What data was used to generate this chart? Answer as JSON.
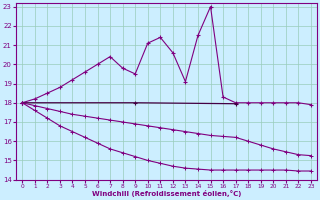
{
  "bg_color": "#cceeff",
  "line_color": "#800080",
  "dark_line_color": "#440044",
  "grid_color": "#99ccbb",
  "xlim": [
    -0.5,
    23.5
  ],
  "ylim": [
    14,
    23.2
  ],
  "yticks": [
    14,
    15,
    16,
    17,
    18,
    19,
    20,
    21,
    22,
    23
  ],
  "xticks": [
    0,
    1,
    2,
    3,
    4,
    5,
    6,
    7,
    8,
    9,
    10,
    11,
    12,
    13,
    14,
    15,
    16,
    17,
    18,
    19,
    20,
    21,
    22,
    23
  ],
  "xlabel": "Windchill (Refroidissement éolien,°C)",
  "curve1_x": [
    0,
    1,
    2,
    3,
    4,
    5,
    6,
    7,
    8,
    9,
    10,
    11,
    12,
    13,
    14,
    15,
    16,
    17,
    18,
    19,
    20,
    21,
    22,
    23
  ],
  "curve1_y": [
    18.0,
    18.2,
    18.5,
    18.8,
    19.2,
    19.6,
    20.0,
    20.4,
    19.8,
    19.5,
    21.1,
    21.4,
    20.6,
    19.1,
    21.5,
    23.0,
    18.3,
    18.0,
    18.0,
    18.0,
    18.0,
    18.0,
    18.0,
    17.9
  ],
  "curve2_x": [
    0,
    9,
    17
  ],
  "curve2_y": [
    18.0,
    18.0,
    17.95
  ],
  "curve3_x": [
    0,
    1,
    2,
    3,
    4,
    5,
    6,
    7,
    8,
    9,
    10,
    11,
    12,
    13,
    14,
    15,
    16,
    17,
    18,
    19,
    20,
    21,
    22,
    23
  ],
  "curve3_y": [
    18.0,
    17.85,
    17.7,
    17.55,
    17.4,
    17.3,
    17.2,
    17.1,
    17.0,
    16.9,
    16.8,
    16.7,
    16.6,
    16.5,
    16.4,
    16.3,
    16.25,
    16.2,
    16.0,
    15.8,
    15.6,
    15.45,
    15.3,
    15.25
  ],
  "curve4_x": [
    0,
    1,
    2,
    3,
    4,
    5,
    6,
    7,
    8,
    9,
    10,
    11,
    12,
    13,
    14,
    15,
    16,
    17,
    18,
    19,
    20,
    21,
    22,
    23
  ],
  "curve4_y": [
    18.0,
    17.6,
    17.2,
    16.8,
    16.5,
    16.2,
    15.9,
    15.6,
    15.4,
    15.2,
    15.0,
    14.85,
    14.7,
    14.6,
    14.55,
    14.5,
    14.5,
    14.5,
    14.5,
    14.5,
    14.5,
    14.5,
    14.45,
    14.45
  ]
}
